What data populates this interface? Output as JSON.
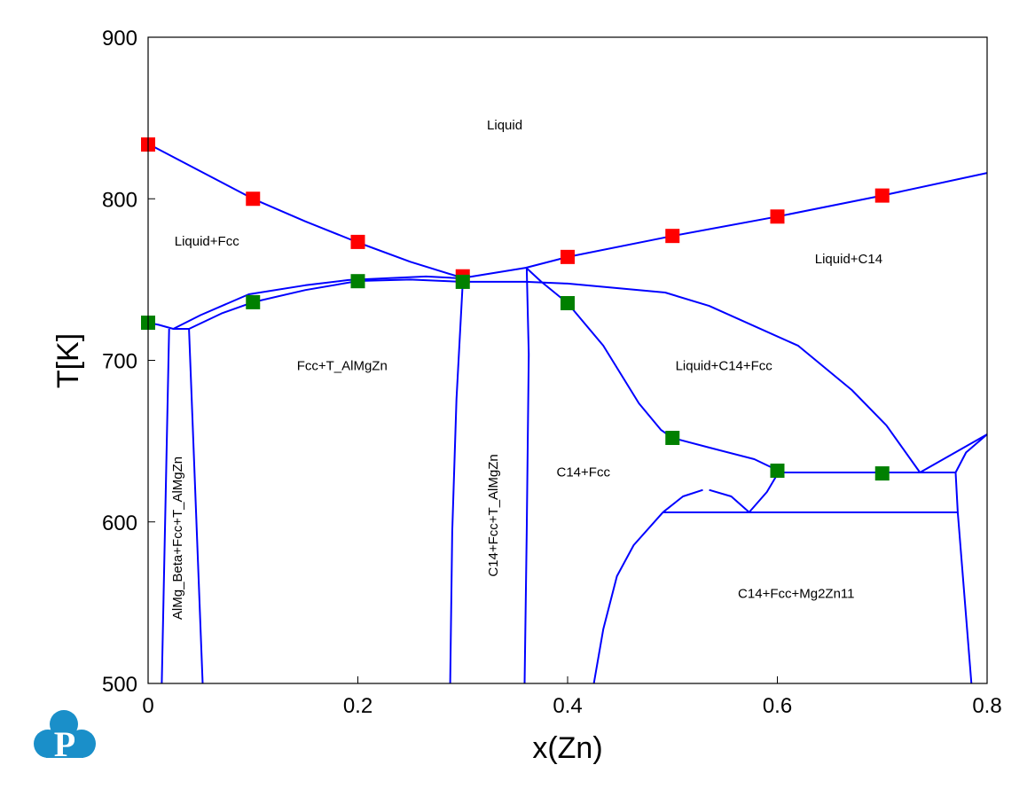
{
  "chart_data": {
    "type": "line",
    "title": "",
    "xlabel": "x(Zn)",
    "ylabel": "T[K]",
    "xlim": [
      0,
      0.8
    ],
    "ylim": [
      500,
      900
    ],
    "xticks": [
      "0",
      "0.2",
      "0.4",
      "0.6",
      "0.8"
    ],
    "xtick_values": [
      0,
      0.2,
      0.4,
      0.6,
      0.8
    ],
    "yticks": [
      "500",
      "600",
      "700",
      "800",
      "900"
    ],
    "ytick_values": [
      500,
      600,
      700,
      800,
      900
    ],
    "grid": false,
    "line_color": "#0000ff",
    "phase_boundaries": [
      {
        "name": "liquidus-fcc",
        "points": [
          [
            0,
            834
          ],
          [
            0.05,
            817
          ],
          [
            0.1,
            800
          ],
          [
            0.15,
            786
          ],
          [
            0.2,
            773
          ],
          [
            0.25,
            761
          ],
          [
            0.3,
            751
          ]
        ]
      },
      {
        "name": "liquidus-c14",
        "points": [
          [
            0.3,
            751
          ],
          [
            0.36,
            757.3
          ],
          [
            0.4,
            764
          ],
          [
            0.5,
            777
          ],
          [
            0.6,
            789
          ],
          [
            0.7,
            802
          ],
          [
            0.8,
            816
          ]
        ]
      },
      {
        "name": "fcc-outer-arc",
        "points": [
          [
            0.024,
            719.5
          ],
          [
            0.05,
            728
          ],
          [
            0.096,
            740.9
          ],
          [
            0.15,
            746.5
          ],
          [
            0.191,
            749.7
          ],
          [
            0.265,
            751.9
          ],
          [
            0.3,
            750.7
          ]
        ]
      },
      {
        "name": "fcc-inner-arc",
        "points": [
          [
            0.039,
            719.5
          ],
          [
            0.07,
            729
          ],
          [
            0.1,
            736
          ],
          [
            0.15,
            743.5
          ],
          [
            0.2,
            749.1
          ],
          [
            0.25,
            750
          ],
          [
            0.3,
            748.6
          ],
          [
            0.36,
            748.6
          ],
          [
            0.4,
            747.5
          ],
          [
            0.493,
            742
          ],
          [
            0.535,
            733.7
          ],
          [
            0.62,
            709
          ],
          [
            0.671,
            681.6
          ],
          [
            0.704,
            659.7
          ],
          [
            0.736,
            630.6
          ]
        ]
      },
      {
        "name": "fcc-left-edge",
        "points": [
          [
            0,
            723.3
          ],
          [
            0.01,
            722
          ],
          [
            0.024,
            719.5
          ],
          [
            0.039,
            719.5
          ]
        ]
      },
      {
        "name": "beta-left-boundary",
        "points": [
          [
            0.02,
            719.5
          ],
          [
            0.013,
            500
          ]
        ]
      },
      {
        "name": "beta-right-boundary",
        "points": [
          [
            0.039,
            719.5
          ],
          [
            0.052,
            500
          ]
        ]
      },
      {
        "name": "t-phase-boundary-left",
        "points": [
          [
            0.3,
            748.6
          ],
          [
            0.294,
            676
          ],
          [
            0.29,
            593.8
          ],
          [
            0.288,
            500
          ]
        ]
      },
      {
        "name": "t-phase-boundary-right",
        "points": [
          [
            0.361,
            757
          ],
          [
            0.363,
            703.6
          ],
          [
            0.361,
            593.8
          ],
          [
            0.359,
            500
          ]
        ]
      },
      {
        "name": "peritectic-diagonal",
        "points": [
          [
            0.361,
            757
          ],
          [
            0.375,
            748.6
          ]
        ]
      },
      {
        "name": "fcc-c14-liquid-boundary",
        "points": [
          [
            0.375,
            748.6
          ],
          [
            0.4,
            735.4
          ],
          [
            0.434,
            709.1
          ],
          [
            0.468,
            673.4
          ],
          [
            0.489,
            657
          ],
          [
            0.5,
            652
          ],
          [
            0.535,
            646
          ],
          [
            0.578,
            638.8
          ],
          [
            0.601,
            631.7
          ]
        ]
      },
      {
        "name": "eutectic-630",
        "points": [
          [
            0.601,
            630.6
          ],
          [
            0.77,
            630.6
          ]
        ]
      },
      {
        "name": "liquid-c14-right",
        "points": [
          [
            0.736,
            630.6
          ],
          [
            0.8,
            654.2
          ]
        ]
      },
      {
        "name": "right-curve",
        "points": [
          [
            0.77,
            630.6
          ],
          [
            0.78,
            643
          ],
          [
            0.8,
            654.2
          ]
        ]
      },
      {
        "name": "mg2zn11-boundary",
        "points": [
          [
            0.77,
            630.6
          ],
          [
            0.772,
            606
          ],
          [
            0.785,
            500
          ]
        ]
      },
      {
        "name": "eutectoid-606",
        "points": [
          [
            0.491,
            605.9
          ],
          [
            0.772,
            605.9
          ]
        ]
      },
      {
        "name": "connector-curve",
        "points": [
          [
            0.601,
            630.6
          ],
          [
            0.59,
            618.5
          ],
          [
            0.573,
            605.9
          ]
        ]
      },
      {
        "name": "dome-left",
        "points": [
          [
            0.491,
            606
          ],
          [
            0.51,
            615.8
          ],
          [
            0.529,
            619.8
          ]
        ]
      },
      {
        "name": "dome-right",
        "points": [
          [
            0.535,
            619.8
          ],
          [
            0.556,
            615.8
          ],
          [
            0.573,
            606
          ]
        ]
      },
      {
        "name": "c14-solvus-bottom",
        "points": [
          [
            0.425,
            500
          ],
          [
            0.434,
            533.5
          ],
          [
            0.447,
            566.4
          ],
          [
            0.463,
            585.6
          ],
          [
            0.491,
            606
          ]
        ]
      }
    ],
    "series": [
      {
        "name": "liquidus-experimental",
        "color": "#ff0000",
        "marker": "square",
        "x": [
          0,
          0.1,
          0.2,
          0.3,
          0.4,
          0.5,
          0.6,
          0.7
        ],
        "y": [
          833.6,
          800,
          773.3,
          752,
          764,
          777,
          789,
          802
        ]
      },
      {
        "name": "solidus-experimental",
        "color": "#008000",
        "marker": "square",
        "x": [
          0,
          0.1,
          0.2,
          0.3,
          0.4,
          0.5,
          0.6,
          0.7
        ],
        "y": [
          723.3,
          736,
          749,
          748.6,
          735.4,
          652,
          631.7,
          630
        ]
      }
    ],
    "annotations": [
      {
        "text": "Liquid",
        "x": 0.34,
        "y": 843,
        "rotate": false
      },
      {
        "text": "Liquid+Fcc",
        "x": 0.056,
        "y": 771,
        "rotate": false
      },
      {
        "text": "Liquid+C14",
        "x": 0.668,
        "y": 760,
        "rotate": false
      },
      {
        "text": "Fcc+T_AlMgZn",
        "x": 0.185,
        "y": 694,
        "rotate": false
      },
      {
        "text": "Liquid+C14+Fcc",
        "x": 0.549,
        "y": 694,
        "rotate": false
      },
      {
        "text": "C14+Fcc",
        "x": 0.415,
        "y": 628,
        "rotate": false
      },
      {
        "text": "C14+Fcc+Mg2Zn11",
        "x": 0.618,
        "y": 553,
        "rotate": false
      },
      {
        "text": "AlMg_Beta+Fcc+T_AlMgZn",
        "x": 0.032,
        "y": 590,
        "rotate": true
      },
      {
        "text": "C14+Fcc+T_AlMgZn",
        "x": 0.333,
        "y": 604,
        "rotate": true
      }
    ]
  },
  "logo": {
    "letter": "P",
    "color": "#1a8fc9"
  }
}
